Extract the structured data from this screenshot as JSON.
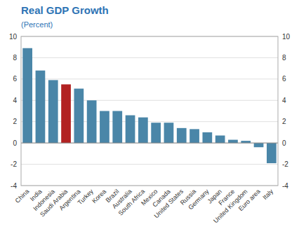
{
  "chart_data": {
    "type": "bar",
    "title": "Real GDP Growth",
    "subtitle": "(Percent)",
    "categories": [
      "China",
      "India",
      "Indonesia",
      "Saudi Arabia",
      "Argentina",
      "Turkey",
      "Korea",
      "Brazil",
      "Australia",
      "South Africa",
      "Mexico",
      "Canada",
      "United States",
      "Russia",
      "Germany",
      "Japan",
      "France",
      "United Kingdom",
      "Euro area",
      "Italy"
    ],
    "values": [
      8.9,
      6.8,
      5.9,
      5.5,
      5.1,
      4.0,
      3.0,
      3.0,
      2.6,
      2.4,
      1.9,
      1.9,
      1.4,
      1.3,
      1.0,
      0.7,
      0.3,
      0.2,
      -0.4,
      -1.9
    ],
    "colors": [
      "#4a86a8",
      "#4a86a8",
      "#4a86a8",
      "#b22222",
      "#4a86a8",
      "#4a86a8",
      "#4a86a8",
      "#4a86a8",
      "#4a86a8",
      "#4a86a8",
      "#4a86a8",
      "#4a86a8",
      "#4a86a8",
      "#4a86a8",
      "#4a86a8",
      "#4a86a8",
      "#4a86a8",
      "#4a86a8",
      "#4a86a8",
      "#4a86a8"
    ],
    "ylim": [
      -4,
      10
    ],
    "yticks": [
      -4,
      -2,
      0,
      2,
      4,
      6,
      8,
      10
    ],
    "grid": true
  }
}
